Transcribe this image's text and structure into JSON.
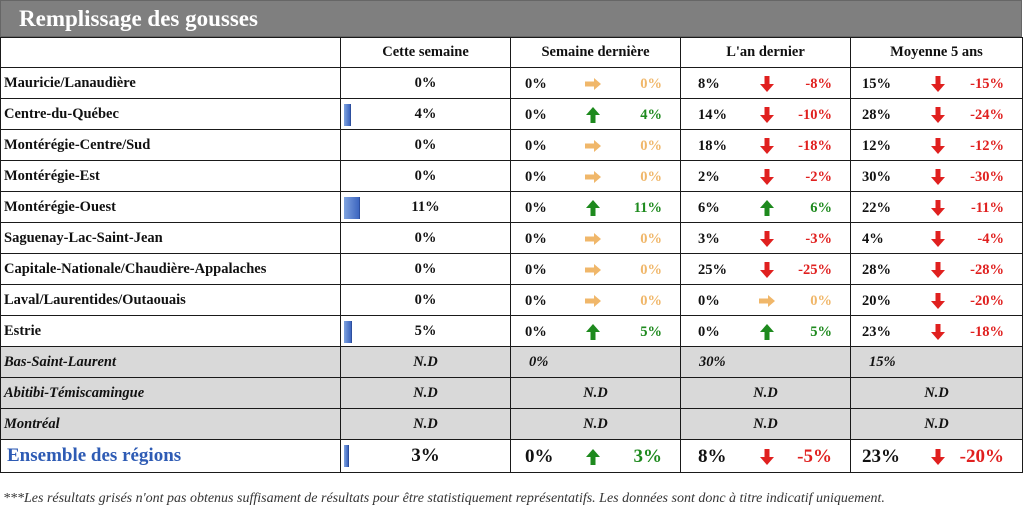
{
  "title": "Remplissage des gousses",
  "colors": {
    "green": "#1e8a1e",
    "red": "#e0201f",
    "orange": "#f0b76a",
    "bar": "#3d66c0",
    "total_text": "#2e5bb4",
    "gray_row": "#d9d9d9"
  },
  "headers": {
    "region": "",
    "this_week": "Cette semaine",
    "last_week": "Semaine dernière",
    "last_year": "L'an dernier",
    "avg5": "Moyenne 5 ans"
  },
  "rows": [
    {
      "region": "Mauricie/Lanaudière",
      "this_week": "0%",
      "bar_pct": 0,
      "lw": {
        "value": "0%",
        "arrow": "right",
        "diff": "0%",
        "color": "orange"
      },
      "ly": {
        "value": "8%",
        "arrow": "down",
        "diff": "-8%",
        "color": "red"
      },
      "avg": {
        "value": "15%",
        "arrow": "down",
        "diff": "-15%",
        "color": "red"
      }
    },
    {
      "region": "Centre-du-Québec",
      "this_week": "4%",
      "bar_pct": 4,
      "lw": {
        "value": "0%",
        "arrow": "up",
        "diff": "4%",
        "color": "green"
      },
      "ly": {
        "value": "14%",
        "arrow": "down",
        "diff": "-10%",
        "color": "red"
      },
      "avg": {
        "value": "28%",
        "arrow": "down",
        "diff": "-24%",
        "color": "red"
      }
    },
    {
      "region": "Montérégie-Centre/Sud",
      "this_week": "0%",
      "bar_pct": 0,
      "lw": {
        "value": "0%",
        "arrow": "right",
        "diff": "0%",
        "color": "orange"
      },
      "ly": {
        "value": "18%",
        "arrow": "down",
        "diff": "-18%",
        "color": "red"
      },
      "avg": {
        "value": "12%",
        "arrow": "down",
        "diff": "-12%",
        "color": "red"
      }
    },
    {
      "region": "Montérégie-Est",
      "this_week": "0%",
      "bar_pct": 0,
      "lw": {
        "value": "0%",
        "arrow": "right",
        "diff": "0%",
        "color": "orange"
      },
      "ly": {
        "value": "2%",
        "arrow": "down",
        "diff": "-2%",
        "color": "red"
      },
      "avg": {
        "value": "30%",
        "arrow": "down",
        "diff": "-30%",
        "color": "red"
      }
    },
    {
      "region": "Montérégie-Ouest",
      "this_week": "11%",
      "bar_pct": 11,
      "lw": {
        "value": "0%",
        "arrow": "up",
        "diff": "11%",
        "color": "green"
      },
      "ly": {
        "value": "6%",
        "arrow": "up",
        "diff": "6%",
        "color": "green"
      },
      "avg": {
        "value": "22%",
        "arrow": "down",
        "diff": "-11%",
        "color": "red"
      }
    },
    {
      "region": "Saguenay-Lac-Saint-Jean",
      "this_week": "0%",
      "bar_pct": 0,
      "lw": {
        "value": "0%",
        "arrow": "right",
        "diff": "0%",
        "color": "orange"
      },
      "ly": {
        "value": "3%",
        "arrow": "down",
        "diff": "-3%",
        "color": "red"
      },
      "avg": {
        "value": "4%",
        "arrow": "down",
        "diff": "-4%",
        "color": "red"
      }
    },
    {
      "region": "Capitale-Nationale/Chaudière-Appalaches",
      "this_week": "0%",
      "bar_pct": 0,
      "lw": {
        "value": "0%",
        "arrow": "right",
        "diff": "0%",
        "color": "orange"
      },
      "ly": {
        "value": "25%",
        "arrow": "down",
        "diff": "-25%",
        "color": "red"
      },
      "avg": {
        "value": "28%",
        "arrow": "down",
        "diff": "-28%",
        "color": "red"
      }
    },
    {
      "region": "Laval/Laurentides/Outaouais",
      "this_week": "0%",
      "bar_pct": 0,
      "lw": {
        "value": "0%",
        "arrow": "right",
        "diff": "0%",
        "color": "orange"
      },
      "ly": {
        "value": "0%",
        "arrow": "right",
        "diff": "0%",
        "color": "orange"
      },
      "avg": {
        "value": "20%",
        "arrow": "down",
        "diff": "-20%",
        "color": "red"
      }
    },
    {
      "region": "Estrie",
      "this_week": "5%",
      "bar_pct": 5,
      "lw": {
        "value": "0%",
        "arrow": "up",
        "diff": "5%",
        "color": "green"
      },
      "ly": {
        "value": "0%",
        "arrow": "up",
        "diff": "5%",
        "color": "green"
      },
      "avg": {
        "value": "23%",
        "arrow": "down",
        "diff": "-18%",
        "color": "red"
      }
    }
  ],
  "gray_rows": [
    {
      "region": "Bas-Saint-Laurent",
      "this_week": "N.D",
      "last_week": "0%",
      "last_year": "30%",
      "avg5": "15%"
    },
    {
      "region": "Abitibi-Témiscamingue",
      "this_week": "N.D",
      "last_week": "N.D",
      "last_year": "N.D",
      "avg5": "N.D"
    },
    {
      "region": "Montréal",
      "this_week": "N.D",
      "last_week": "N.D",
      "last_year": "N.D",
      "avg5": "N.D"
    }
  ],
  "total": {
    "region": "Ensemble des régions",
    "this_week": "3%",
    "bar_pct": 3,
    "lw": {
      "value": "0%",
      "arrow": "up",
      "diff": "3%",
      "color": "green"
    },
    "ly": {
      "value": "8%",
      "arrow": "down",
      "diff": "-5%",
      "color": "red"
    },
    "avg": {
      "value": "23%",
      "arrow": "down",
      "diff": "-20%",
      "color": "red"
    }
  },
  "footnote": "***Les résultats grisés n'ont pas obtenus suffisament de résultats pour être statistiquement représentatifs. Les données sont donc à titre indicatif uniquement."
}
